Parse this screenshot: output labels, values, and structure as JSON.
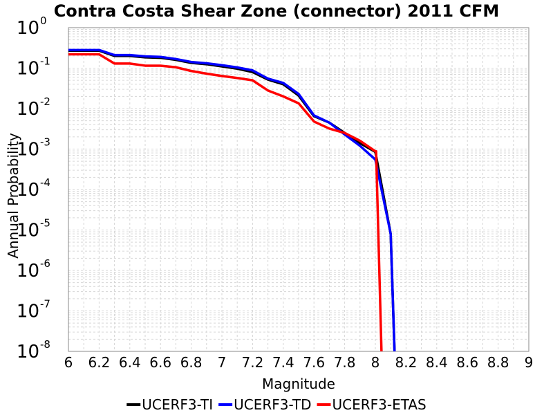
{
  "chart_data": {
    "type": "line",
    "title": "Contra Costa Shear Zone (connector) 2011 CFM",
    "xlabel": "Magnitude",
    "ylabel": "Annual Probability",
    "xlim": [
      6,
      9
    ],
    "ylim": [
      1e-08,
      1
    ],
    "y_scale": "log",
    "grid": true,
    "legend_position": "bottom",
    "x_ticks": [
      "6",
      "6.2",
      "6.4",
      "6.6",
      "6.8",
      "7",
      "7.2",
      "7.4",
      "7.6",
      "7.8",
      "8",
      "8.2",
      "8.4",
      "8.6",
      "8.8",
      "9"
    ],
    "y_ticks": [
      {
        "base": "10",
        "exp": "0"
      },
      {
        "base": "10",
        "exp": "-1"
      },
      {
        "base": "10",
        "exp": "-2"
      },
      {
        "base": "10",
        "exp": "-3"
      },
      {
        "base": "10",
        "exp": "-4"
      },
      {
        "base": "10",
        "exp": "-5"
      },
      {
        "base": "10",
        "exp": "-6"
      },
      {
        "base": "10",
        "exp": "-7"
      },
      {
        "base": "10",
        "exp": "-8"
      }
    ],
    "series": [
      {
        "name": "UCERF3-TI",
        "color": "#000000",
        "x": [
          6.0,
          6.1,
          6.2,
          6.3,
          6.4,
          6.5,
          6.6,
          6.7,
          6.8,
          6.9,
          7.0,
          7.1,
          7.2,
          7.3,
          7.4,
          7.5,
          7.6,
          7.7,
          7.8,
          7.9,
          8.0,
          8.1,
          8.125
        ],
        "y": [
          0.27,
          0.27,
          0.27,
          0.2,
          0.2,
          0.185,
          0.18,
          0.16,
          0.135,
          0.125,
          0.11,
          0.097,
          0.08,
          0.052,
          0.04,
          0.021,
          0.0065,
          0.0045,
          0.0025,
          0.0014,
          0.00085,
          8e-06,
          1e-08
        ]
      },
      {
        "name": "UCERF3-TD",
        "color": "#0000ff",
        "x": [
          6.0,
          6.1,
          6.2,
          6.3,
          6.4,
          6.5,
          6.6,
          6.7,
          6.8,
          6.9,
          7.0,
          7.1,
          7.2,
          7.3,
          7.4,
          7.5,
          7.6,
          7.7,
          7.8,
          7.9,
          8.0,
          8.1,
          8.125
        ],
        "y": [
          0.28,
          0.28,
          0.28,
          0.21,
          0.21,
          0.195,
          0.19,
          0.168,
          0.142,
          0.132,
          0.118,
          0.104,
          0.088,
          0.055,
          0.043,
          0.023,
          0.0068,
          0.0045,
          0.0023,
          0.0012,
          0.00055,
          8e-06,
          1e-08
        ]
      },
      {
        "name": "UCERF3-ETAS",
        "color": "#ff0000",
        "x": [
          6.0,
          6.1,
          6.2,
          6.3,
          6.4,
          6.5,
          6.6,
          6.7,
          6.8,
          6.9,
          7.0,
          7.1,
          7.2,
          7.3,
          7.4,
          7.5,
          7.6,
          7.7,
          7.8,
          7.9,
          8.0,
          8.005,
          8.04
        ],
        "y": [
          0.22,
          0.22,
          0.22,
          0.13,
          0.13,
          0.115,
          0.115,
          0.105,
          0.085,
          0.073,
          0.064,
          0.057,
          0.05,
          0.028,
          0.02,
          0.0135,
          0.0048,
          0.0032,
          0.0025,
          0.0016,
          0.00088,
          0.00088,
          1e-08
        ]
      }
    ]
  }
}
